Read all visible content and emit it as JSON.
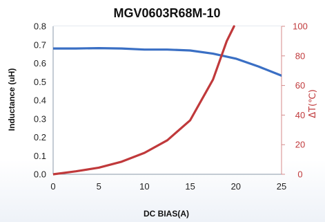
{
  "chart_data": {
    "type": "line",
    "title": "MGV0603R68M-10",
    "xlabel": "DC BIAS(A)",
    "ylabel": "Inductance  (uH)",
    "y2label": "ΔT(℃)",
    "xlim": [
      0,
      25
    ],
    "ylim": [
      0,
      0.8
    ],
    "y2lim": [
      0,
      100
    ],
    "x_ticks": [
      "0",
      "5",
      "10",
      "15",
      "20",
      "25"
    ],
    "y_ticks": [
      "0.0",
      "0.1",
      "0.2",
      "0.3",
      "0.4",
      "0.5",
      "0.6",
      "0.7",
      "0.8"
    ],
    "y2_ticks": [
      "0",
      "20",
      "40",
      "60",
      "80",
      "100"
    ],
    "grid": true,
    "series": [
      {
        "axis": "left",
        "color": "#3a6fc4",
        "points": [
          [
            0,
            0.68
          ],
          [
            2.5,
            0.68
          ],
          [
            5,
            0.682
          ],
          [
            7.5,
            0.68
          ],
          [
            10,
            0.674
          ],
          [
            12.5,
            0.674
          ],
          [
            15,
            0.669
          ],
          [
            17.5,
            0.652
          ],
          [
            20,
            0.625
          ],
          [
            22.5,
            0.582
          ],
          [
            25,
            0.533
          ]
        ]
      },
      {
        "axis": "right",
        "color": "#c0393b",
        "points": [
          [
            0,
            0
          ],
          [
            2.5,
            2
          ],
          [
            5,
            4.5
          ],
          [
            7.5,
            8.5
          ],
          [
            10,
            14.5
          ],
          [
            12.5,
            23
          ],
          [
            15,
            36.5
          ],
          [
            17.5,
            64
          ],
          [
            19,
            90
          ],
          [
            19.8,
            100
          ]
        ]
      }
    ],
    "colors": {
      "left_axis": "#3a6fc4",
      "right_axis": "#c0393b",
      "grid": "#c9d3e0",
      "frame": "#d68a8a"
    }
  }
}
